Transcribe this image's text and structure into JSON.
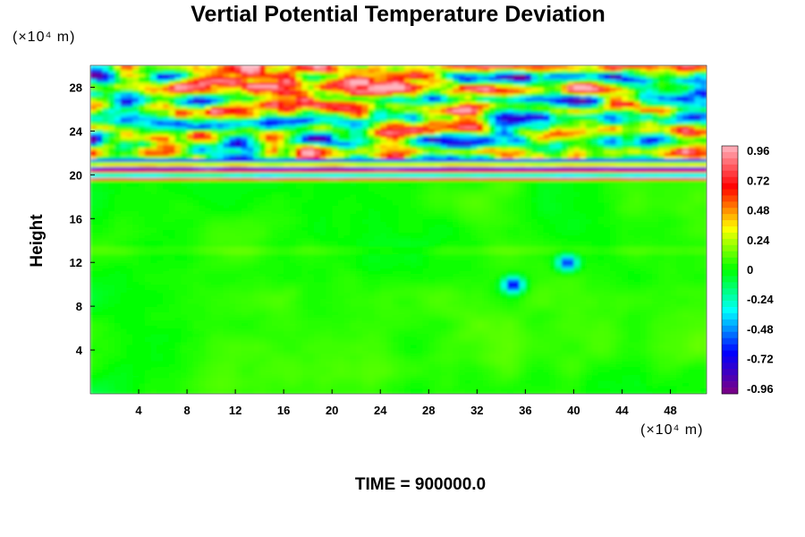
{
  "chart_data": {
    "type": "heatmap",
    "title": "Vertial Potential Temperature Deviation",
    "ylabel": "Height",
    "x_unit": "(×10⁴ m)",
    "y_unit": "(×10⁴ m)",
    "xlim": [
      0,
      51
    ],
    "ylim": [
      0,
      30
    ],
    "x_ticks": [
      4,
      8,
      12,
      16,
      20,
      24,
      28,
      32,
      36,
      40,
      44,
      48
    ],
    "y_ticks": [
      4,
      8,
      12,
      16,
      20,
      24,
      28
    ],
    "colorbar": {
      "range": [
        -1.0,
        1.0
      ],
      "ticks": [
        "0.96",
        "0.72",
        "0.48",
        "0.24",
        "0",
        "-0.24",
        "-0.48",
        "-0.72",
        "-0.96"
      ],
      "colors": [
        "#800080",
        "#0000ff",
        "#00ffff",
        "#00ff00",
        "#ffff00",
        "#ff0000",
        "#ffb6c1"
      ]
    },
    "field_description_regions": [
      {
        "y_range": [
          0,
          19.5
        ],
        "value_range": [
          -0.15,
          0.15
        ]
      },
      {
        "y_range": [
          19.5,
          21.5
        ],
        "value_range": [
          -0.96,
          0.96
        ]
      },
      {
        "y_range": [
          21.5,
          30
        ],
        "value_range": [
          -0.96,
          0.96
        ]
      }
    ],
    "features": [
      {
        "x": 35,
        "y": 10,
        "value": -0.8
      },
      {
        "x": 39.5,
        "y": 12,
        "value": -0.7
      }
    ]
  },
  "footer": {
    "time_text": "TIME = 900000.0"
  }
}
